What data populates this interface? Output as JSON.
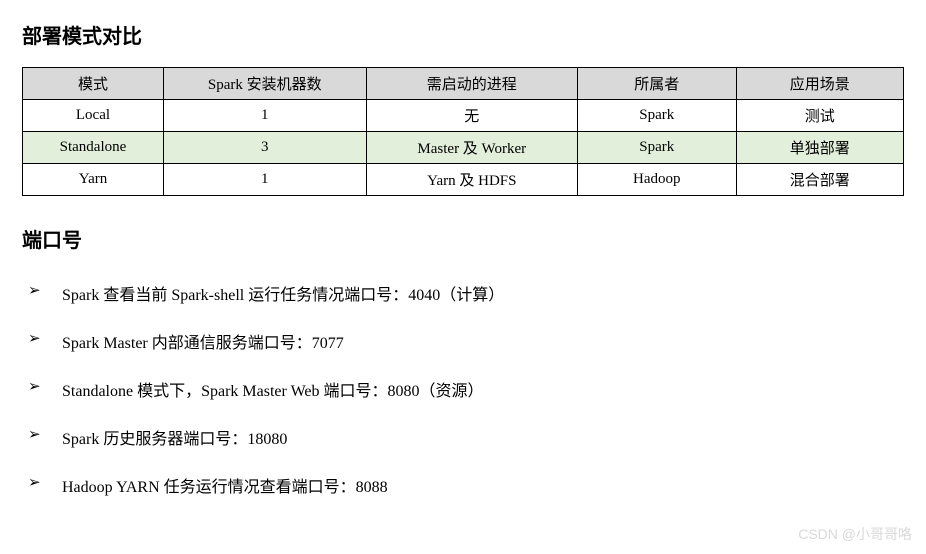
{
  "heading1": "部署模式对比",
  "heading2": "端口号",
  "table": {
    "headers": [
      "模式",
      "Spark 安装机器数",
      "需启动的进程",
      "所属者",
      "应用场景"
    ],
    "rows": [
      {
        "cells": [
          "Local",
          "1",
          "无",
          "Spark",
          "测试"
        ],
        "highlight": false
      },
      {
        "cells": [
          "Standalone",
          "3",
          "Master 及 Worker",
          "Spark",
          "单独部署"
        ],
        "highlight": true
      },
      {
        "cells": [
          "Yarn",
          "1",
          "Yarn 及 HDFS",
          "Hadoop",
          "混合部署"
        ],
        "highlight": false
      }
    ],
    "header_bg": "#d9d9d9",
    "highlight_bg": "#e2efda",
    "border_color": "#000000",
    "col_widths": [
      "16%",
      "23%",
      "24%",
      "18%",
      "19%"
    ]
  },
  "ports": {
    "items": [
      "Spark 查看当前 Spark-shell 运行任务情况端口号：4040（计算）",
      "Spark Master 内部通信服务端口号：7077",
      "Standalone 模式下，Spark Master Web 端口号：8080（资源）",
      "Spark 历史服务器端口号：18080",
      "Hadoop YARN 任务运行情况查看端口号：8088"
    ]
  },
  "watermark": "CSDN @小哥哥咯",
  "style": {
    "background": "#ffffff",
    "heading_fontsize": 20,
    "body_fontsize": 16,
    "table_fontsize": 15,
    "watermark_color": "#d8d8d8"
  }
}
